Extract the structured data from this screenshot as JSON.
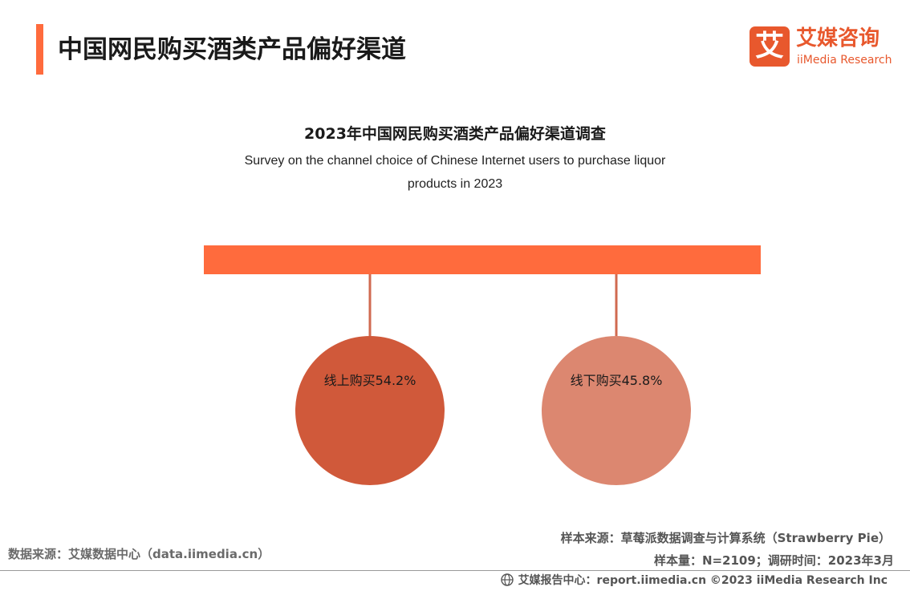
{
  "header": {
    "title": "中国网民购买酒类产品偏好渠道",
    "accent_color": "#ff6b3d"
  },
  "logo": {
    "badge_char": "艾",
    "name_cn": "艾媒咨询",
    "name_en": "iiMedia Research",
    "color": "#e8582d"
  },
  "chart_data": {
    "type": "pie",
    "title": "2023年中国网民购买酒类产品偏好渠道调查",
    "subtitle": "Survey on the channel choice of Chinese Internet users to purchase liquor products in 2023",
    "slices": [
      {
        "label": "线上购买",
        "value": 54.2,
        "unit": "%",
        "color": "#d0593a"
      },
      {
        "label": "线下购买",
        "value": 45.8,
        "unit": "%",
        "color": "#dc8770"
      }
    ],
    "bar_color": "#ff6b3d",
    "connector_color": "#d06a50"
  },
  "footer": {
    "source_left": "数据来源：艾媒数据中心（data.iimedia.cn）",
    "sample_source": "样本来源：草莓派数据调查与计算系统（Strawberry Pie）",
    "sample_info": "样本量：N=2109；调研时间：2023年3月",
    "copyright": "艾媒报告中心：report.iimedia.cn    ©2023  iiMedia Research  Inc"
  }
}
